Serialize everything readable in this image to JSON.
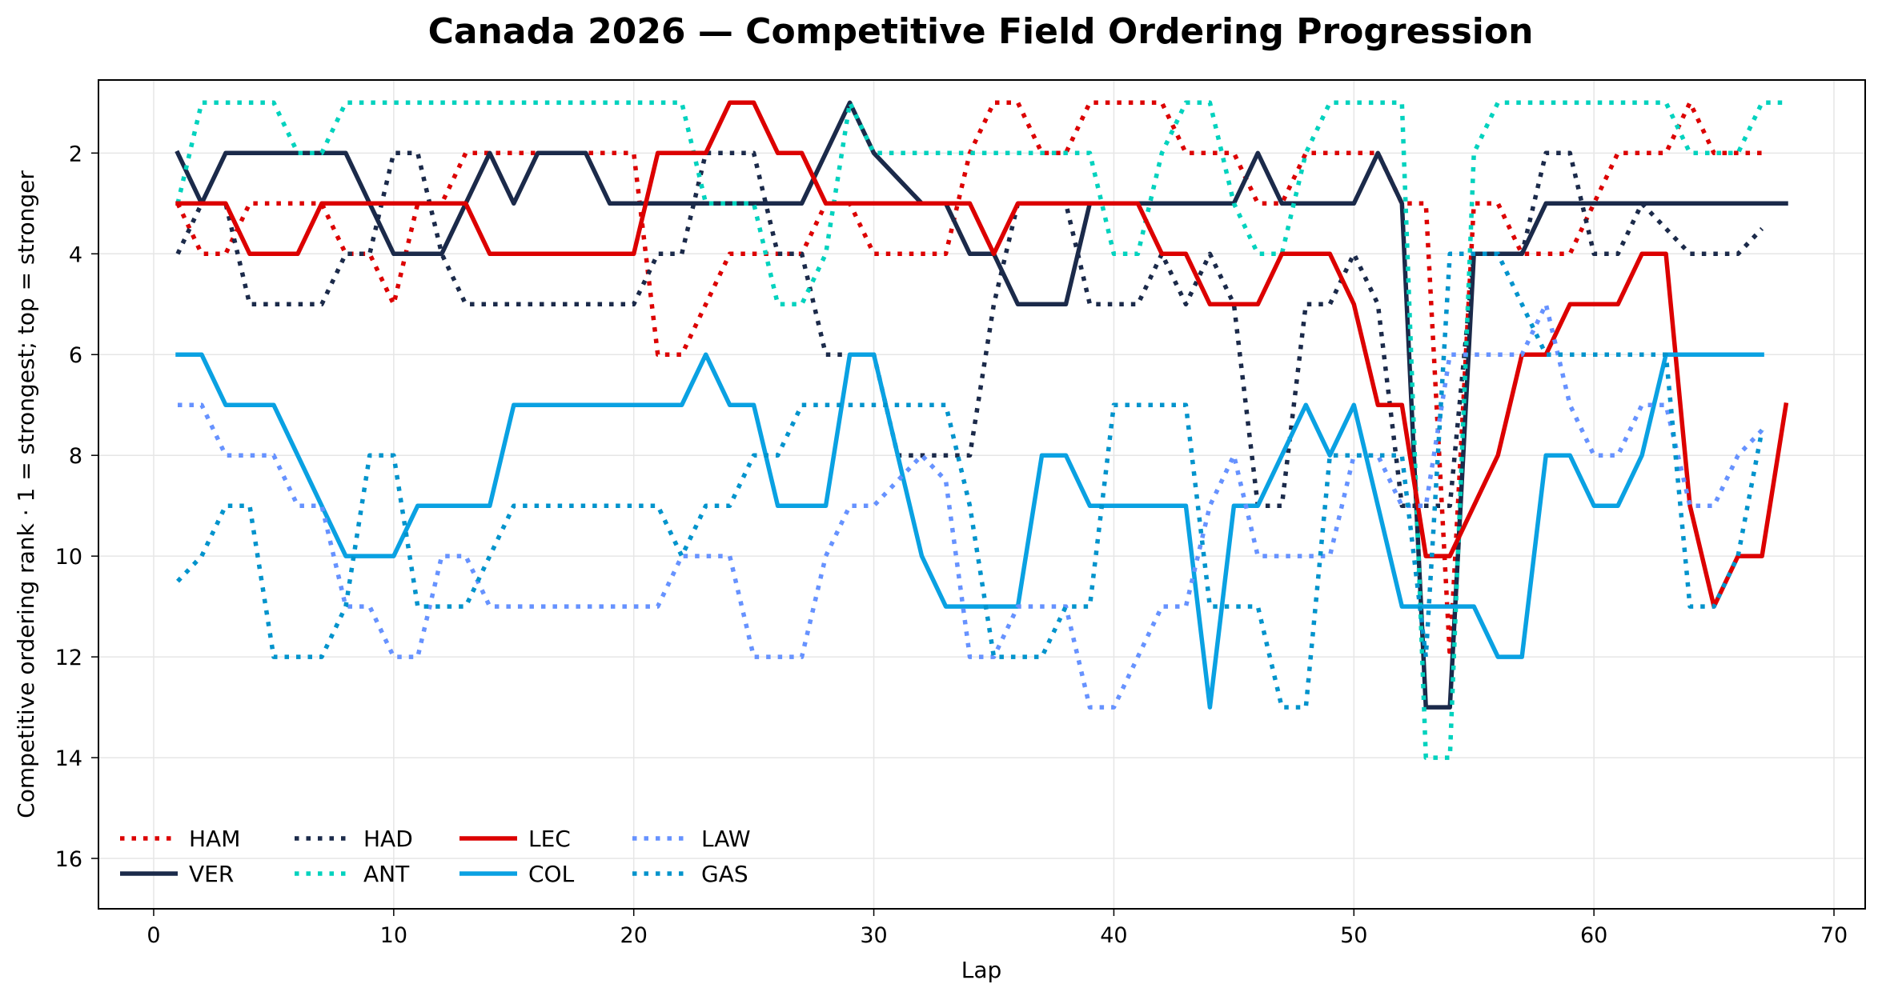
{
  "chart_data": {
    "type": "line",
    "title": "Canada 2026 — Competitive Field Ordering Progression",
    "xlabel": "Lap",
    "ylabel": "Competitive ordering rank · 1 = strongest; top = stronger",
    "xlim": [
      -2.3,
      71.3
    ],
    "ylim": [
      17,
      0.55
    ],
    "y_inverted": true,
    "xticks": [
      0,
      10,
      20,
      30,
      40,
      50,
      60,
      70
    ],
    "yticks": [
      2,
      4,
      6,
      8,
      10,
      12,
      14,
      16
    ],
    "grid": true,
    "legend": {
      "placement": "lower-left",
      "columns": 4
    },
    "series": [
      {
        "name": "HAM",
        "color": "#dc0000",
        "style": "dotted",
        "x": [
          1,
          2,
          3,
          4,
          5,
          6,
          7,
          8,
          9,
          10,
          11,
          12,
          13,
          14,
          15,
          16,
          17,
          18,
          19,
          20,
          21,
          22,
          23,
          24,
          25,
          26,
          27,
          28,
          29,
          30,
          31,
          32,
          33,
          34,
          35,
          36,
          37,
          38,
          39,
          40,
          41,
          42,
          43,
          44,
          45,
          46,
          47,
          48,
          49,
          50,
          51,
          52,
          53,
          54,
          55,
          56,
          57,
          58,
          59,
          60,
          61,
          62,
          63,
          64,
          65,
          66,
          67
        ],
        "y": [
          3,
          4,
          4,
          3,
          3,
          3,
          3,
          4,
          4,
          5,
          3,
          3,
          2,
          2,
          2,
          2,
          2,
          2,
          2,
          2,
          6,
          6,
          5,
          4,
          4,
          4,
          4,
          3,
          3,
          4,
          4,
          4,
          4,
          2,
          1,
          1,
          2,
          2,
          1,
          1,
          1,
          1,
          2,
          2,
          2,
          3,
          3,
          2,
          2,
          2,
          2,
          3,
          3,
          12,
          3,
          3,
          4,
          4,
          4,
          3,
          2,
          2,
          2,
          1,
          2,
          2,
          2
        ]
      },
      {
        "name": "VER",
        "color": "#1b2a4a",
        "style": "solid",
        "x": [
          1,
          2,
          3,
          4,
          5,
          6,
          7,
          8,
          9,
          10,
          11,
          12,
          13,
          14,
          15,
          16,
          17,
          18,
          19,
          20,
          21,
          22,
          23,
          24,
          25,
          26,
          27,
          28,
          29,
          30,
          31,
          32,
          33,
          34,
          35,
          36,
          37,
          38,
          39,
          40,
          41,
          42,
          43,
          44,
          45,
          46,
          47,
          48,
          49,
          50,
          51,
          52,
          53,
          54,
          55,
          56,
          57,
          58,
          59,
          60,
          61,
          62,
          63,
          64,
          65,
          66,
          67,
          68
        ],
        "y": [
          2,
          3,
          2,
          2,
          2,
          2,
          2,
          2,
          3,
          4,
          4,
          4,
          3,
          2,
          3,
          2,
          2,
          2,
          3,
          3,
          3,
          3,
          3,
          3,
          3,
          3,
          3,
          2,
          1,
          2,
          2.5,
          3,
          3,
          4,
          4,
          5,
          5,
          5,
          3,
          3,
          3,
          3,
          3,
          3,
          3,
          2,
          3,
          3,
          3,
          3,
          2,
          3,
          13,
          13,
          4,
          4,
          4,
          3,
          3,
          3,
          3,
          3,
          3,
          3,
          3,
          3,
          3,
          3
        ]
      },
      {
        "name": "HAD",
        "color": "#1b2a4a",
        "style": "dotted",
        "x": [
          1,
          2,
          3,
          4,
          5,
          6,
          7,
          8,
          9,
          10,
          11,
          12,
          13,
          14,
          15,
          16,
          17,
          18,
          19,
          20,
          21,
          22,
          23,
          24,
          25,
          26,
          27,
          28,
          29,
          30,
          31,
          32,
          33,
          34,
          35,
          36,
          37,
          38,
          39,
          40,
          41,
          42,
          43,
          44,
          45,
          46,
          47,
          48,
          49,
          50,
          51,
          52,
          53,
          54,
          55,
          56,
          57,
          58,
          59,
          60,
          61,
          62,
          63,
          64,
          65,
          66,
          67
        ],
        "y": [
          4,
          3,
          3,
          5,
          5,
          5,
          5,
          4,
          4,
          2,
          2,
          4,
          5,
          5,
          5,
          5,
          5,
          5,
          5,
          5,
          4,
          4,
          2,
          2,
          2,
          4,
          4,
          6,
          6,
          6,
          8,
          8,
          8,
          8,
          5,
          3,
          3,
          3,
          5,
          5,
          5,
          4,
          5,
          4,
          5,
          9,
          9,
          5,
          5,
          4,
          5,
          9,
          9,
          9,
          4,
          4,
          4,
          2,
          2,
          4,
          4,
          3,
          3.5,
          4,
          4,
          4,
          3.5
        ]
      },
      {
        "name": "ANT",
        "color": "#00d2be",
        "style": "dotted",
        "x": [
          1,
          2,
          3,
          4,
          5,
          6,
          7,
          8,
          9,
          10,
          11,
          12,
          13,
          14,
          15,
          16,
          17,
          18,
          19,
          20,
          21,
          22,
          23,
          24,
          25,
          26,
          27,
          28,
          29,
          30,
          31,
          32,
          33,
          34,
          35,
          36,
          37,
          38,
          39,
          40,
          41,
          42,
          43,
          44,
          45,
          46,
          47,
          48,
          49,
          50,
          51,
          52,
          53,
          54,
          55,
          56,
          57,
          58,
          59,
          60,
          61,
          62,
          63,
          64,
          65,
          66,
          67,
          68
        ],
        "y": [
          3,
          1,
          1,
          1,
          1,
          2,
          2,
          1,
          1,
          1,
          1,
          1,
          1,
          1,
          1,
          1,
          1,
          1,
          1,
          1,
          1,
          1,
          3,
          3,
          3,
          5,
          5,
          4,
          1,
          2,
          2,
          2,
          2,
          2,
          2,
          2,
          2,
          2,
          2,
          4,
          4,
          2,
          1,
          1,
          3,
          4,
          4,
          2,
          1,
          1,
          1,
          1,
          14,
          14,
          2,
          1,
          1,
          1,
          1,
          1,
          1,
          1,
          1,
          2,
          2,
          2,
          1,
          1
        ]
      },
      {
        "name": "LEC",
        "color": "#dc0000",
        "style": "solid",
        "x": [
          1,
          2,
          3,
          4,
          5,
          6,
          7,
          8,
          9,
          10,
          11,
          12,
          13,
          14,
          15,
          16,
          17,
          18,
          19,
          20,
          21,
          22,
          23,
          24,
          25,
          26,
          27,
          28,
          29,
          30,
          31,
          32,
          33,
          34,
          35,
          36,
          37,
          38,
          39,
          40,
          41,
          42,
          43,
          44,
          45,
          46,
          47,
          48,
          49,
          50,
          51,
          52,
          53,
          54,
          55,
          56,
          57,
          58,
          59,
          60,
          61,
          62,
          63,
          64,
          65,
          66,
          67,
          68
        ],
        "y": [
          3,
          3,
          3,
          4,
          4,
          4,
          3,
          3,
          3,
          3,
          3,
          3,
          3,
          4,
          4,
          4,
          4,
          4,
          4,
          4,
          2,
          2,
          2,
          1,
          1,
          2,
          2,
          3,
          3,
          3,
          3,
          3,
          3,
          3,
          4,
          3,
          3,
          3,
          3,
          3,
          3,
          4,
          4,
          5,
          5,
          5,
          4,
          4,
          4,
          5,
          7,
          7,
          10,
          10,
          9,
          8,
          6,
          6,
          5,
          5,
          5,
          4,
          4,
          9,
          11,
          10,
          10,
          7
        ]
      },
      {
        "name": "COL",
        "color": "#0aa1e2",
        "style": "solid",
        "x": [
          1,
          2,
          3,
          4,
          5,
          6,
          7,
          8,
          9,
          10,
          11,
          12,
          13,
          14,
          15,
          16,
          17,
          18,
          19,
          20,
          21,
          22,
          23,
          24,
          25,
          26,
          27,
          28,
          29,
          30,
          31,
          32,
          33,
          34,
          35,
          36,
          37,
          38,
          39,
          40,
          41,
          42,
          43,
          44,
          45,
          46,
          47,
          48,
          49,
          50,
          51,
          52,
          53,
          54,
          55,
          56,
          57,
          58,
          59,
          60,
          61,
          62,
          63,
          64,
          65,
          66,
          67
        ],
        "y": [
          6,
          6,
          7,
          7,
          7,
          8,
          9,
          10,
          10,
          10,
          9,
          9,
          9,
          9,
          7,
          7,
          7,
          7,
          7,
          7,
          7,
          7,
          6,
          7,
          7,
          9,
          9,
          9,
          6,
          6,
          8,
          10,
          11,
          11,
          11,
          11,
          8,
          8,
          9,
          9,
          9,
          9,
          9,
          13,
          9,
          9,
          8,
          7,
          8,
          7,
          9,
          11,
          11,
          11,
          11,
          12,
          12,
          8,
          8,
          9,
          9,
          8,
          6,
          6,
          6,
          6,
          6
        ]
      },
      {
        "name": "LAW",
        "color": "#6692ff",
        "style": "dotted",
        "x": [
          1,
          2,
          3,
          4,
          5,
          6,
          7,
          8,
          9,
          10,
          11,
          12,
          13,
          14,
          15,
          16,
          17,
          18,
          19,
          20,
          21,
          22,
          23,
          24,
          25,
          26,
          27,
          28,
          29,
          30,
          31,
          32,
          33,
          34,
          35,
          36,
          37,
          38,
          39,
          40,
          41,
          42,
          43,
          44,
          45,
          46,
          47,
          48,
          49,
          50,
          51,
          52,
          53,
          54,
          55,
          56,
          57,
          58,
          59,
          60,
          61,
          62,
          63,
          64,
          65,
          66,
          67
        ],
        "y": [
          7,
          7,
          8,
          8,
          8,
          9,
          9,
          11,
          11,
          12,
          12,
          10,
          10,
          11,
          11,
          11,
          11,
          11,
          11,
          11,
          11,
          10,
          10,
          10,
          12,
          12,
          12,
          10,
          9,
          9,
          8.5,
          8,
          8.5,
          12,
          12,
          11,
          11,
          11,
          13,
          13,
          12,
          11,
          11,
          9,
          8,
          10,
          10,
          10,
          10,
          8,
          8,
          9,
          9,
          6,
          6,
          6,
          6,
          5,
          7,
          8,
          8,
          7,
          7,
          9,
          9,
          8,
          7.5
        ]
      },
      {
        "name": "GAS",
        "color": "#0093cc",
        "style": "dotted",
        "x": [
          1,
          2,
          3,
          4,
          5,
          6,
          7,
          8,
          9,
          10,
          11,
          12,
          13,
          14,
          15,
          16,
          17,
          18,
          19,
          20,
          21,
          22,
          23,
          24,
          25,
          26,
          27,
          28,
          29,
          30,
          31,
          32,
          33,
          34,
          35,
          36,
          37,
          38,
          39,
          40,
          41,
          42,
          43,
          44,
          45,
          46,
          47,
          48,
          49,
          50,
          51,
          52,
          53,
          54,
          55,
          56,
          57,
          58,
          59,
          60,
          61,
          62,
          63,
          64,
          65,
          66,
          67
        ],
        "y": [
          10.5,
          10,
          9,
          9,
          12,
          12,
          12,
          11,
          8,
          8,
          11,
          11,
          11,
          10,
          9,
          9,
          9,
          9,
          9,
          9,
          9,
          10,
          9,
          9,
          8,
          8,
          7,
          7,
          7,
          7,
          7,
          7,
          7,
          9,
          12,
          12,
          12,
          11,
          11,
          7,
          7,
          7,
          7,
          11,
          11,
          11,
          13,
          13,
          8,
          8,
          8,
          8,
          12,
          4,
          4,
          4,
          5,
          6,
          6,
          6,
          6,
          6,
          6,
          11,
          11,
          10,
          7.5
        ]
      }
    ]
  }
}
